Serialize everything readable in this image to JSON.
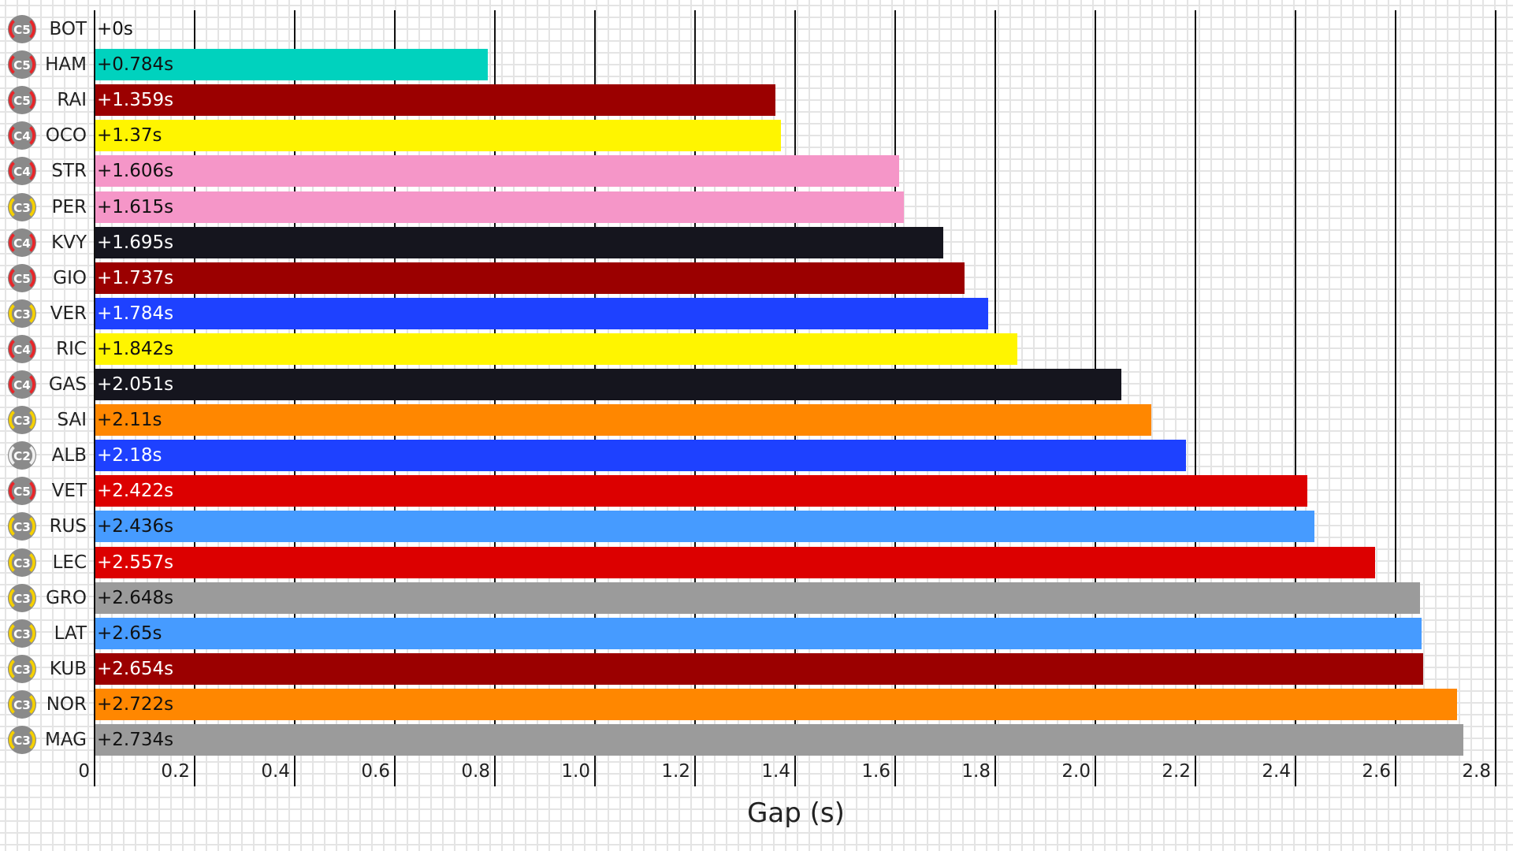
{
  "chart_data": {
    "type": "bar",
    "orientation": "horizontal",
    "title": "",
    "xlabel": "Gap (s)",
    "ylabel": "",
    "xlim": [
      0,
      2.8
    ],
    "x_ticks": [
      "0",
      "0.2",
      "0.4",
      "0.6",
      "0.8",
      "1.0",
      "1.2",
      "1.4",
      "1.6",
      "1.8",
      "2.0",
      "2.2",
      "2.4",
      "2.6",
      "2.8"
    ],
    "grid": "vertical lines at major ticks",
    "categories": [
      "BOT",
      "HAM",
      "RAI",
      "OCO",
      "STR",
      "PER",
      "KVY",
      "GIO",
      "VER",
      "RIC",
      "GAS",
      "SAI",
      "ALB",
      "VET",
      "RUS",
      "LEC",
      "GRO",
      "LAT",
      "KUB",
      "NOR",
      "MAG"
    ],
    "values": [
      0,
      0.784,
      1.359,
      1.37,
      1.606,
      1.615,
      1.695,
      1.737,
      1.784,
      1.842,
      2.051,
      2.11,
      2.18,
      2.422,
      2.436,
      2.557,
      2.648,
      2.65,
      2.654,
      2.722,
      2.734
    ],
    "labels": [
      "+0s",
      "+0.784s",
      "+1.359s",
      "+1.37s",
      "+1.606s",
      "+1.615s",
      "+1.695s",
      "+1.737s",
      "+1.784s",
      "+1.842s",
      "+2.051s",
      "+2.11s",
      "+2.18s",
      "+2.422s",
      "+2.436s",
      "+2.557s",
      "+2.648s",
      "+2.65s",
      "+2.654s",
      "+2.722s",
      "+2.734s"
    ],
    "tyres": [
      "C5",
      "C5",
      "C5",
      "C4",
      "C4",
      "C3",
      "C4",
      "C5",
      "C3",
      "C4",
      "C4",
      "C3",
      "C2",
      "C5",
      "C3",
      "C3",
      "C3",
      "C3",
      "C3",
      "C3",
      "C3"
    ],
    "colors": [
      "#FFFFFF",
      "#00D2BE",
      "#9B0000",
      "#FFF500",
      "#F596C8",
      "#F596C8",
      "#15151E",
      "#9B0000",
      "#1E41FF",
      "#FFF500",
      "#15151E",
      "#FF8700",
      "#1E41FF",
      "#DC0000",
      "#469BFF",
      "#DC0000",
      "#9B9B9B",
      "#469BFF",
      "#9B0000",
      "#FF8700",
      "#9B9B9B"
    ]
  },
  "tyre_colors": {
    "C2": "#F0F0F0",
    "C3": "#F5D000",
    "C4": "#E8262A",
    "C5": "#E8262A"
  },
  "rows": [
    {
      "driver": "BOT",
      "value": "+0s",
      "tyre": "C5"
    },
    {
      "driver": "HAM",
      "value": "+0.784s",
      "tyre": "C5"
    },
    {
      "driver": "RAI",
      "value": "+1.359s",
      "tyre": "C5"
    },
    {
      "driver": "OCO",
      "value": "+1.37s",
      "tyre": "C4"
    },
    {
      "driver": "STR",
      "value": "+1.606s",
      "tyre": "C4"
    },
    {
      "driver": "PER",
      "value": "+1.615s",
      "tyre": "C3"
    },
    {
      "driver": "KVY",
      "value": "+1.695s",
      "tyre": "C4"
    },
    {
      "driver": "GIO",
      "value": "+1.737s",
      "tyre": "C5"
    },
    {
      "driver": "VER",
      "value": "+1.784s",
      "tyre": "C3"
    },
    {
      "driver": "RIC",
      "value": "+1.842s",
      "tyre": "C4"
    },
    {
      "driver": "GAS",
      "value": "+2.051s",
      "tyre": "C4"
    },
    {
      "driver": "SAI",
      "value": "+2.11s",
      "tyre": "C3"
    },
    {
      "driver": "ALB",
      "value": "+2.18s",
      "tyre": "C2"
    },
    {
      "driver": "VET",
      "value": "+2.422s",
      "tyre": "C5"
    },
    {
      "driver": "RUS",
      "value": "+2.436s",
      "tyre": "C3"
    },
    {
      "driver": "LEC",
      "value": "+2.557s",
      "tyre": "C3"
    },
    {
      "driver": "GRO",
      "value": "+2.648s",
      "tyre": "C3"
    },
    {
      "driver": "LAT",
      "value": "+2.65s",
      "tyre": "C3"
    },
    {
      "driver": "KUB",
      "value": "+2.654s",
      "tyre": "C3"
    },
    {
      "driver": "NOR",
      "value": "+2.722s",
      "tyre": "C3"
    },
    {
      "driver": "MAG",
      "value": "+2.734s",
      "tyre": "C3"
    }
  ],
  "axis": {
    "xlabel": "Gap (s)",
    "ticks": [
      "0",
      "0.2",
      "0.4",
      "0.6",
      "0.8",
      "1.0",
      "1.2",
      "1.4",
      "1.6",
      "1.8",
      "2.0",
      "2.2",
      "2.4",
      "2.6",
      "2.8"
    ]
  }
}
